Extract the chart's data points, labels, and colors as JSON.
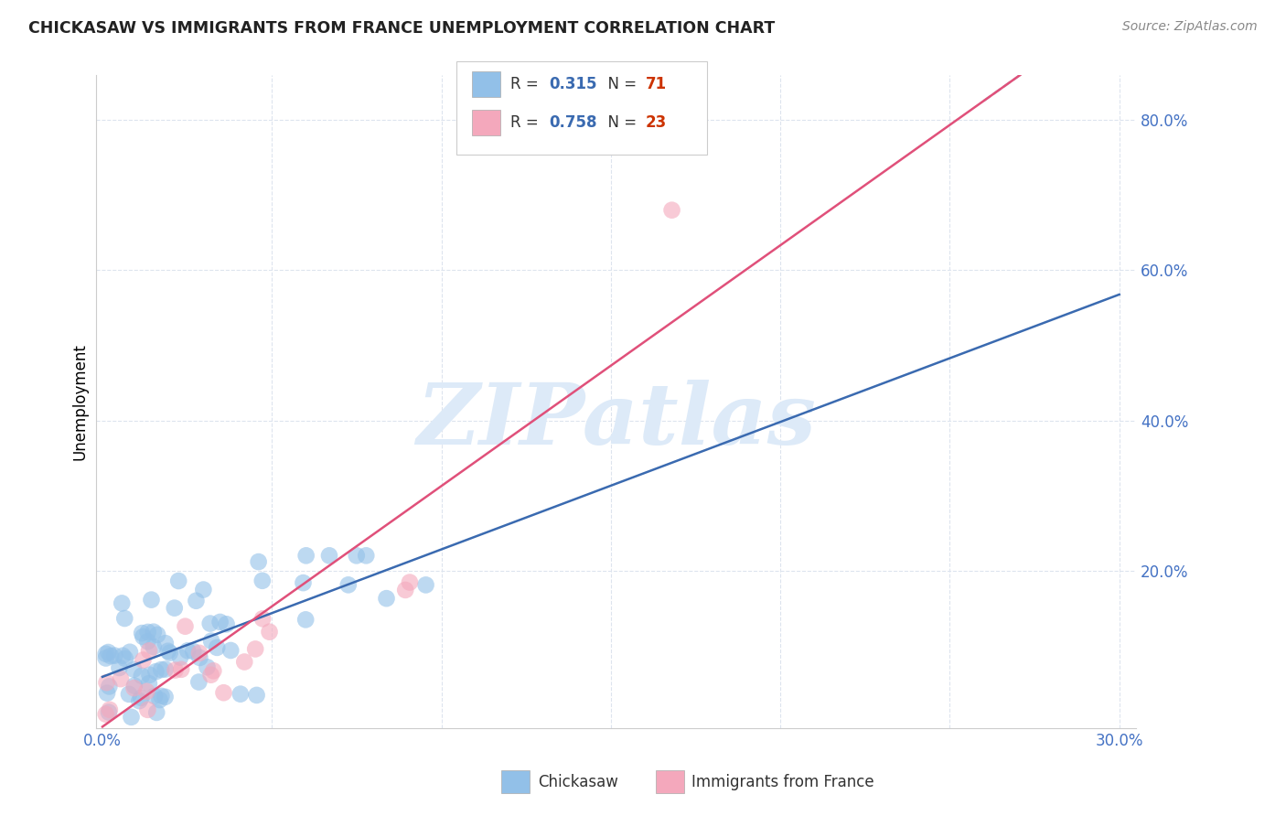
{
  "title": "CHICKASAW VS IMMIGRANTS FROM FRANCE UNEMPLOYMENT CORRELATION CHART",
  "source": "Source: ZipAtlas.com",
  "ylabel": "Unemployment",
  "xlim": [
    0.0,
    0.3
  ],
  "ylim": [
    0.0,
    0.85
  ],
  "chickasaw_R": 0.315,
  "chickasaw_N": 71,
  "france_R": 0.758,
  "france_N": 23,
  "blue_color": "#92c0e8",
  "pink_color": "#f4a8bc",
  "blue_line_color": "#3a6ab0",
  "pink_line_color": "#e0507a",
  "dashed_line_color": "#b8c4d4",
  "watermark_text": "ZIPatlas",
  "watermark_color": "#ddeaf8",
  "title_color": "#222222",
  "source_color": "#888888",
  "tick_color": "#4472c4",
  "label_color": "#333333",
  "grid_color": "#dde4ee",
  "spine_color": "#cccccc"
}
